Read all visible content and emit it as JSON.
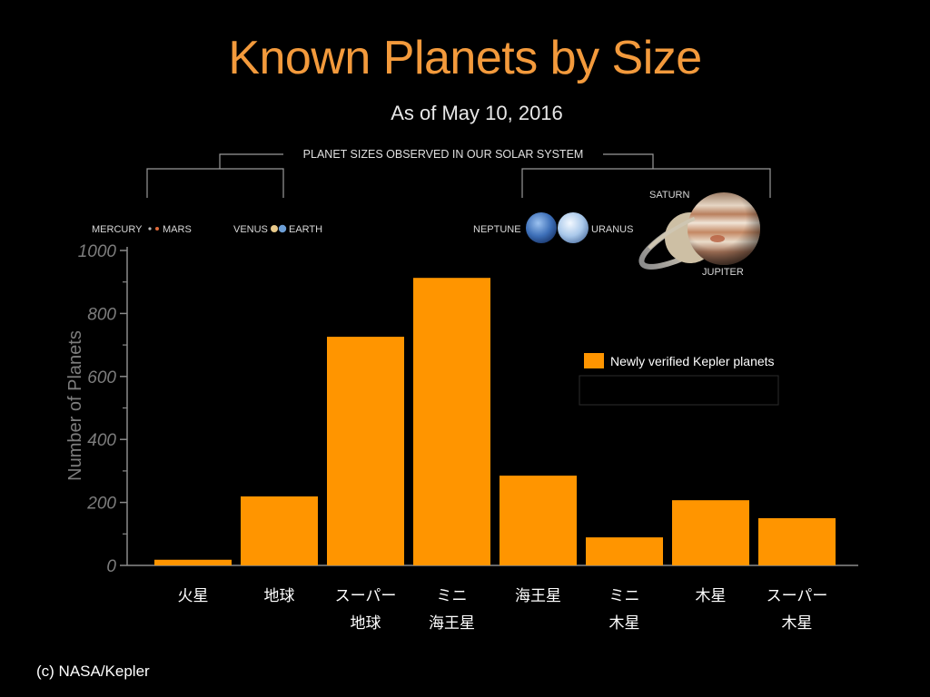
{
  "chart_data": {
    "type": "bar",
    "title": "Known Planets by Size",
    "subtitle": "As of May 10, 2016",
    "ylabel": "Number of Planets",
    "ylim": [
      0,
      1000
    ],
    "yticks": [
      0,
      200,
      400,
      600,
      800,
      1000
    ],
    "categories": [
      [
        "火星"
      ],
      [
        "地球"
      ],
      [
        "スーパー",
        "地球"
      ],
      [
        "ミニ",
        "海王星"
      ],
      [
        "海王星"
      ],
      [
        "ミニ",
        "木星"
      ],
      [
        "木星"
      ],
      [
        "スーパー",
        "木星"
      ]
    ],
    "series": [
      {
        "name": "Newly verified Kepler planets",
        "values": [
          18,
          219,
          726,
          913,
          285,
          89,
          207,
          150
        ]
      }
    ],
    "legend": "right",
    "grid": false,
    "bar_color": "#ff9500",
    "solar_system": {
      "header": "PLANET SIZES OBSERVED IN OUR SOLAR SYSTEM",
      "planets": {
        "mercury": "MERCURY",
        "mars": "MARS",
        "venus": "VENUS",
        "earth": "EARTH",
        "neptune": "NEPTUNE",
        "uranus": "URANUS",
        "saturn": "SATURN",
        "jupiter": "JUPITER"
      }
    }
  },
  "credit": "(c) NASA/Kepler"
}
